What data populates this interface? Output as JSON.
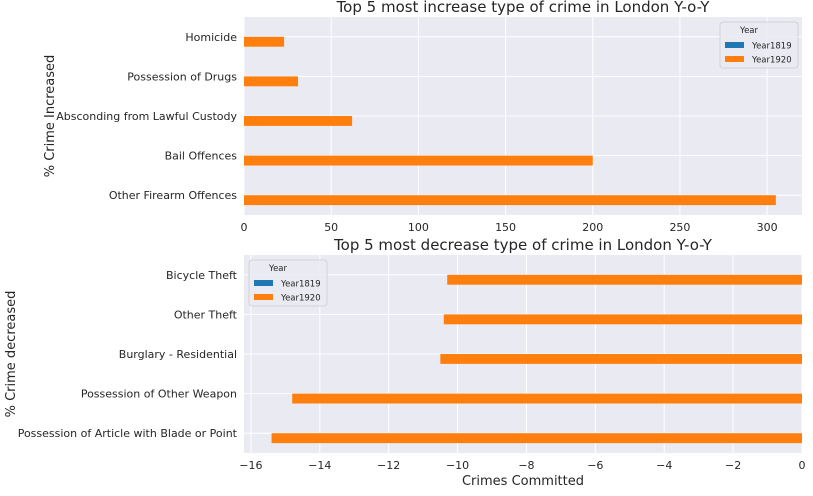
{
  "chart_data": [
    {
      "type": "bar",
      "orientation": "horizontal",
      "title": "Top 5 most increase type of crime in London Y-o-Y",
      "xlabel": "",
      "ylabel": "% Crime Increased",
      "categories": [
        "Homicide",
        "Possession of Drugs",
        "Absconding from Lawful Custody",
        "Bail Offences",
        "Other Firearm Offences"
      ],
      "series": [
        {
          "name": "Year1819",
          "color": "#1f77b4",
          "values": [
            0,
            0,
            0,
            0,
            0
          ]
        },
        {
          "name": "Year1920",
          "color": "#ff7f0e",
          "values": [
            23,
            31,
            62,
            200,
            305
          ]
        }
      ],
      "xlim": [
        0,
        320
      ],
      "xticks": [
        0,
        50,
        100,
        150,
        200,
        250,
        300
      ],
      "xtick_labels": [
        "0",
        "50",
        "100",
        "150",
        "200",
        "250",
        "300"
      ],
      "legend": {
        "title": "Year",
        "position": "top-right"
      },
      "grid": true
    },
    {
      "type": "bar",
      "orientation": "horizontal",
      "title": "Top 5 most decrease type of crime in London Y-o-Y",
      "xlabel": "Crimes Committed",
      "ylabel": "% Crime decreased",
      "categories": [
        "Bicycle Theft",
        "Other Theft",
        "Burglary - Residential",
        "Possession of Other Weapon",
        "Possession of Article with Blade or Point"
      ],
      "series": [
        {
          "name": "Year1819",
          "color": "#1f77b4",
          "values": [
            0,
            0,
            0,
            0,
            0
          ]
        },
        {
          "name": "Year1920",
          "color": "#ff7f0e",
          "values": [
            -10.3,
            -10.4,
            -10.5,
            -14.8,
            -15.4
          ]
        }
      ],
      "xlim": [
        -16.2,
        0
      ],
      "xticks": [
        -16,
        -14,
        -12,
        -10,
        -8,
        -6,
        -4,
        -2,
        0
      ],
      "xtick_labels": [
        "−16",
        "−14",
        "−12",
        "−10",
        "−8",
        "−6",
        "−4",
        "−2",
        "0"
      ],
      "legend": {
        "title": "Year",
        "position": "top-left"
      },
      "grid": true
    }
  ],
  "colors": {
    "background": "#eaeaf2",
    "grid": "#ffffff",
    "text": "#262626"
  }
}
